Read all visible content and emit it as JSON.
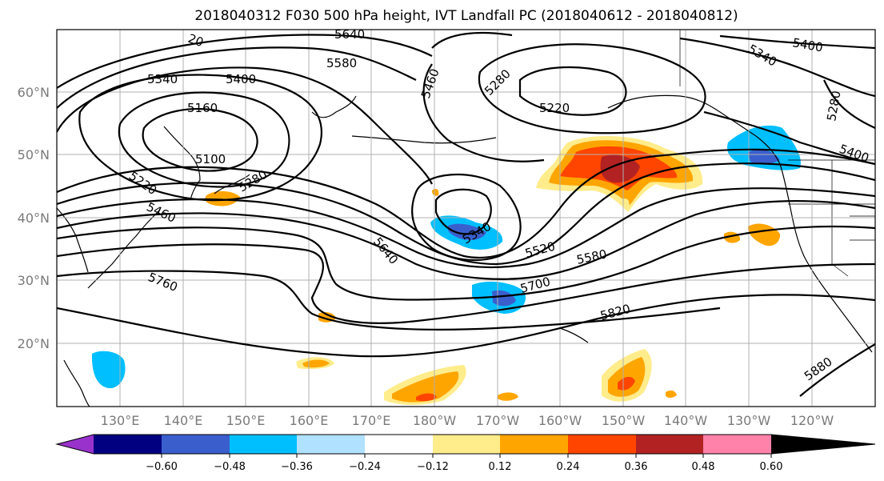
{
  "title": "2018040312 F030 500 hPa height, IVT Landfall PC (2018040612 - 2018040812)",
  "map": {
    "lat_labels": [
      "60°N",
      "50°N",
      "40°N",
      "30°N",
      "20°N"
    ],
    "lon_labels": [
      "130°E",
      "140°E",
      "150°E",
      "160°E",
      "170°E",
      "180°W",
      "170°W",
      "160°W",
      "150°W",
      "140°W",
      "130°W",
      "120°W"
    ],
    "contour_labels": [
      "5640",
      "5580",
      "5340",
      "5400",
      "5160",
      "5100",
      "5220",
      "5280",
      "5460",
      "5220",
      "5280",
      "5340",
      "5640",
      "5520",
      "5580",
      "5700",
      "5760",
      "5820",
      "5880",
      "5400",
      "5340",
      "5400",
      "5280",
      "5460",
      "20"
    ]
  },
  "colorbar": {
    "ticks": [
      "−0.60",
      "−0.48",
      "−0.36",
      "−0.24",
      "−0.12",
      "0.12",
      "0.24",
      "0.36",
      "0.48",
      "0.60"
    ],
    "colors": [
      "#9932cc",
      "#000080",
      "#3a5fcd",
      "#00bfff",
      "#b0e2ff",
      "#ffffff",
      "#ffec8b",
      "#ffa500",
      "#ff4500",
      "#b22222",
      "#ff82ab"
    ]
  }
}
